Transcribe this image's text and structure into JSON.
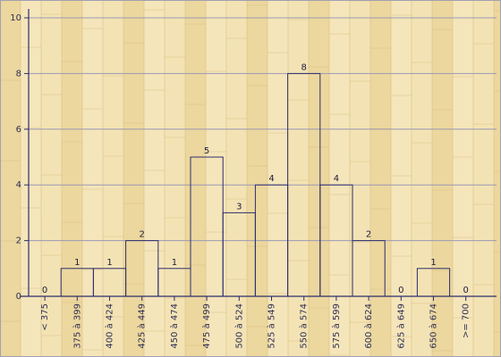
{
  "chart_data": {
    "type": "bar",
    "categories": [
      "< 375",
      "375 à 399",
      "400 à 424",
      "425 à 449",
      "450 à 474",
      "475 à 499",
      "500 à 524",
      "525 à 549",
      "550 à 574",
      "575 à 599",
      "600 à 624",
      "625 à 649",
      "650 à 674",
      ">= 700"
    ],
    "values": [
      0,
      1,
      1,
      2,
      1,
      5,
      3,
      4,
      8,
      4,
      2,
      0,
      1,
      0
    ],
    "data_labels": [
      "0",
      "1",
      "1",
      "2",
      "1",
      "5",
      "3",
      "4",
      "8",
      "4",
      "2",
      "0",
      "1",
      "0"
    ],
    "yticks": [
      0,
      2,
      4,
      6,
      8,
      10
    ],
    "ylim": [
      0,
      10
    ],
    "grid": true,
    "title": "",
    "xlabel": "",
    "ylabel": "",
    "colors": {
      "background": "#f3e3b4",
      "plank_light": "#f6e8bf",
      "plank_dark": "#e6cd8c",
      "grid": "#9a9ab4",
      "axis": "#2e2e6e",
      "bar_stroke": "#2e2e6e",
      "border": "#a0a0b0"
    }
  }
}
